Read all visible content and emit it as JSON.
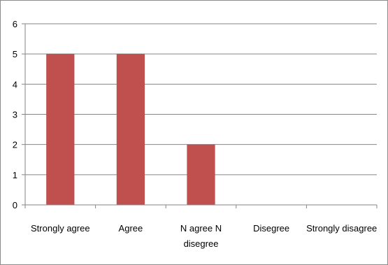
{
  "chart_data": {
    "type": "bar",
    "categories": [
      [
        "Strongly agree"
      ],
      [
        "Agree"
      ],
      [
        "N agree N",
        "disegree"
      ],
      [
        "Disegree"
      ],
      [
        "Strongly disagree"
      ]
    ],
    "values": [
      5,
      5,
      2,
      0,
      0
    ],
    "ylim": [
      0,
      6
    ],
    "yticks": [
      0,
      1,
      2,
      3,
      4,
      5,
      6
    ],
    "grid": true,
    "legend": "none",
    "colors": {
      "bar": "#c0504d",
      "grid": "#868686",
      "axis": "#868686"
    }
  }
}
